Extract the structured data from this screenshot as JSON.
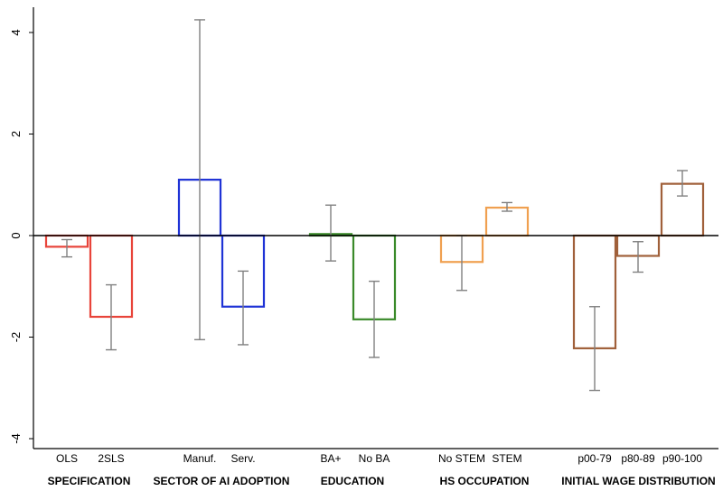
{
  "chart_data": {
    "type": "bar",
    "title": "",
    "xlabel": "",
    "ylabel": "",
    "ylim": [
      -4.4,
      4.5
    ],
    "yticks": [
      -4,
      -2,
      0,
      2,
      4
    ],
    "ytick_labels": [
      "-4",
      "-2",
      "0",
      "2",
      "4"
    ],
    "grid": false,
    "legend": "none",
    "error_bar_color": "#808080",
    "groups": [
      {
        "label": "SPECIFICATION",
        "color": "#e8443a",
        "bars": [
          {
            "category": "OLS",
            "value": -0.22,
            "ci": [
              -0.42,
              -0.08
            ]
          },
          {
            "category": "2SLS",
            "value": -1.6,
            "ci": [
              -2.25,
              -0.97
            ]
          }
        ]
      },
      {
        "label": "SECTOR OF AI ADOPTION",
        "color": "#1f33d6",
        "bars": [
          {
            "category": "Manuf.",
            "value": 1.1,
            "ci": [
              -2.05,
              4.25
            ]
          },
          {
            "category": "Serv.",
            "value": -1.4,
            "ci": [
              -2.15,
              -0.7
            ]
          }
        ]
      },
      {
        "label": "EDUCATION",
        "color": "#3a8a2a",
        "bars": [
          {
            "category": "BA+",
            "value": 0.03,
            "ci": [
              -0.5,
              0.6
            ]
          },
          {
            "category": "No BA",
            "value": -1.65,
            "ci": [
              -2.4,
              -0.9
            ]
          }
        ]
      },
      {
        "label": "HS OCCUPATION",
        "color": "#f0a050",
        "bars": [
          {
            "category": "No STEM",
            "value": -0.52,
            "ci": [
              -1.08,
              0.0
            ]
          },
          {
            "category": "STEM",
            "value": 0.55,
            "ci": [
              0.48,
              0.65
            ]
          }
        ]
      },
      {
        "label": "INITIAL WAGE DISTRIBUTION",
        "color": "#a0603a",
        "bars": [
          {
            "category": "p00-79",
            "value": -2.22,
            "ci": [
              -3.05,
              -1.4
            ]
          },
          {
            "category": "p80-89",
            "value": -0.4,
            "ci": [
              -0.72,
              -0.12
            ]
          },
          {
            "category": "p90-100",
            "value": 1.02,
            "ci": [
              0.78,
              1.28
            ]
          }
        ]
      }
    ]
  }
}
